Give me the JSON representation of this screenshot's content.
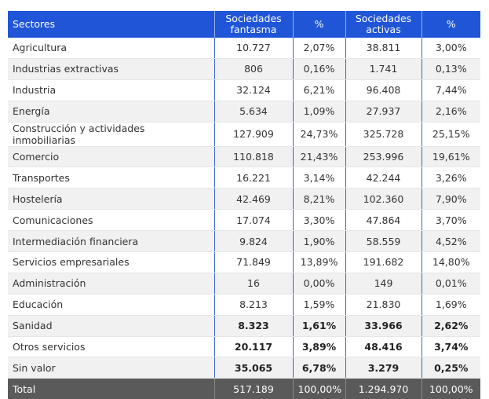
{
  "table": {
    "header": [
      "Sectores",
      "Sociedades fantasma",
      "%",
      "Sociedades activas",
      "%"
    ],
    "rows": [
      [
        "Agricultura",
        "10.727",
        "2,07%",
        "38.811",
        "3,00%"
      ],
      [
        "Industrias extractivas",
        "806",
        "0,16%",
        "1.741",
        "0,13%"
      ],
      [
        "Industria",
        "32.124",
        "6,21%",
        "96.408",
        "7,44%"
      ],
      [
        "Energía",
        "5.634",
        "1,09%",
        "27.937",
        "2,16%"
      ],
      [
        "Construcción y actividades inmobiliarias",
        "127.909",
        "24,73%",
        "325.728",
        "25,15%"
      ],
      [
        "Comercio",
        "110.818",
        "21,43%",
        "253.996",
        "19,61%"
      ],
      [
        "Transportes",
        "16.221",
        "3,14%",
        "42.244",
        "3,26%"
      ],
      [
        "Hostelería",
        "42.469",
        "8,21%",
        "102.360",
        "7,90%"
      ],
      [
        "Comunicaciones",
        "17.074",
        "3,30%",
        "47.864",
        "3,70%"
      ],
      [
        "Intermediación financiera",
        "9.824",
        "1,90%",
        "58.559",
        "4,52%"
      ],
      [
        "Servicios empresariales",
        "71.849",
        "13,89%",
        "191.682",
        "14,80%"
      ],
      [
        "Administración",
        "16",
        "0,00%",
        "149",
        "0,01%"
      ],
      [
        "Educación",
        "8.213",
        "1,59%",
        "21.830",
        "1,69%"
      ],
      [
        "Sanidad",
        "8.323",
        "1,61%",
        "33.966",
        "2,62%"
      ],
      [
        "Otros servicios",
        "20.117",
        "3,89%",
        "48.416",
        "3,74%"
      ],
      [
        "Sin valor",
        "35.065",
        "6,78%",
        "3.279",
        "0,25%"
      ]
    ],
    "total": [
      "Total",
      "517.189",
      "100,00%",
      "1.294.970",
      "100,00%"
    ]
  }
}
